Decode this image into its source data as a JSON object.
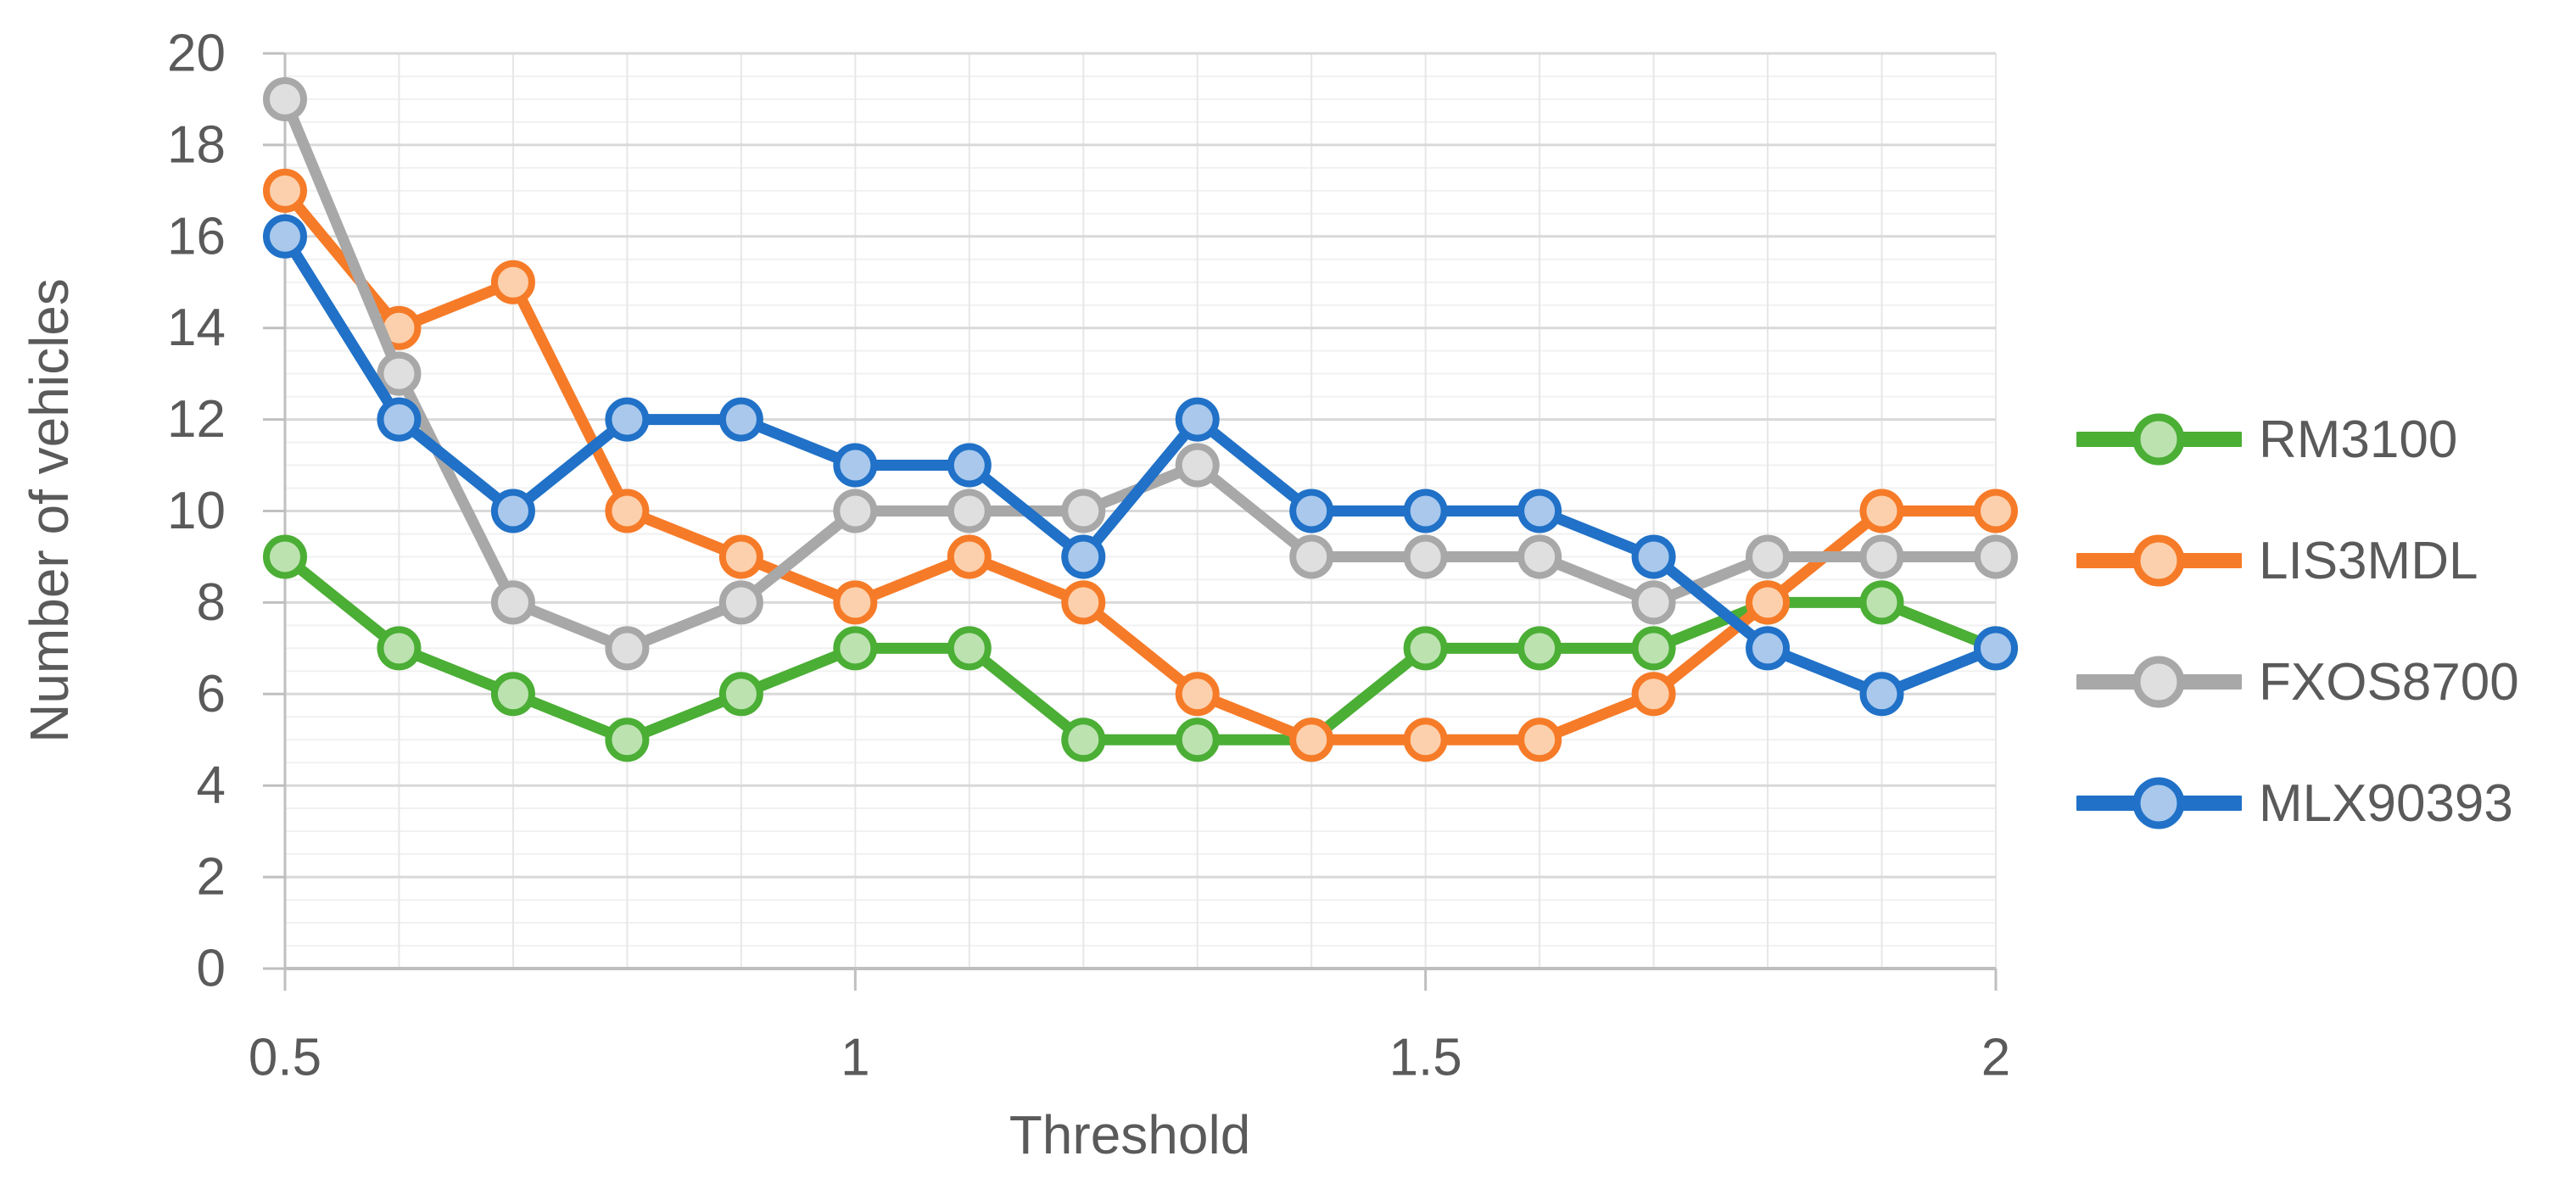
{
  "chart_data": {
    "type": "line",
    "title": "",
    "xlabel": "Threshold",
    "ylabel": "Number of vehicles",
    "x_categories": [
      0.5,
      0.6,
      0.7,
      0.8,
      0.9,
      1.0,
      1.1,
      1.2,
      1.3,
      1.4,
      1.5,
      1.6,
      1.7,
      1.8,
      1.9,
      2.0
    ],
    "x_tick_labels": [
      "0.5",
      "1",
      "1.5",
      "2"
    ],
    "x_tick_indices": [
      0,
      5,
      10,
      15
    ],
    "y_tick_labels": [
      "0",
      "2",
      "4",
      "6",
      "8",
      "10",
      "12",
      "14",
      "16",
      "18",
      "20"
    ],
    "ylim": [
      0,
      20
    ],
    "y_major_unit": 2,
    "y_minor_unit": 0.5,
    "grid": true,
    "legend_position": "right",
    "series": [
      {
        "name": "RM3100",
        "color": "#4BAE35",
        "marker_fill": "#BCE2B0",
        "values": [
          9,
          7,
          6,
          5,
          6,
          7,
          7,
          5,
          5,
          5,
          7,
          7,
          7,
          8,
          8,
          7
        ]
      },
      {
        "name": "LIS3MDL",
        "color": "#F67B28",
        "marker_fill": "#FCD0AC",
        "values": [
          17,
          14,
          15,
          10,
          9,
          8,
          9,
          8,
          6,
          5,
          5,
          5,
          6,
          8,
          10,
          10
        ]
      },
      {
        "name": "FXOS8700",
        "color": "#A8A8A8",
        "marker_fill": "#DFDFDF",
        "values": [
          19,
          13,
          8,
          7,
          8,
          10,
          10,
          10,
          11,
          9,
          9,
          9,
          8,
          9,
          9,
          9
        ]
      },
      {
        "name": "MLX90393",
        "color": "#2071C7",
        "marker_fill": "#A9C8EC",
        "values": [
          16,
          12,
          10,
          12,
          12,
          11,
          11,
          9,
          12,
          10,
          10,
          10,
          9,
          7,
          6,
          7
        ]
      }
    ]
  },
  "style_colors": {
    "text": "#5a5a5a",
    "axis_line": "#bfbfbf",
    "major_gridline": "#d9d9d9",
    "minor_gridline": "#f1f1f1",
    "vertical_gridline": "#e7e7e7"
  }
}
